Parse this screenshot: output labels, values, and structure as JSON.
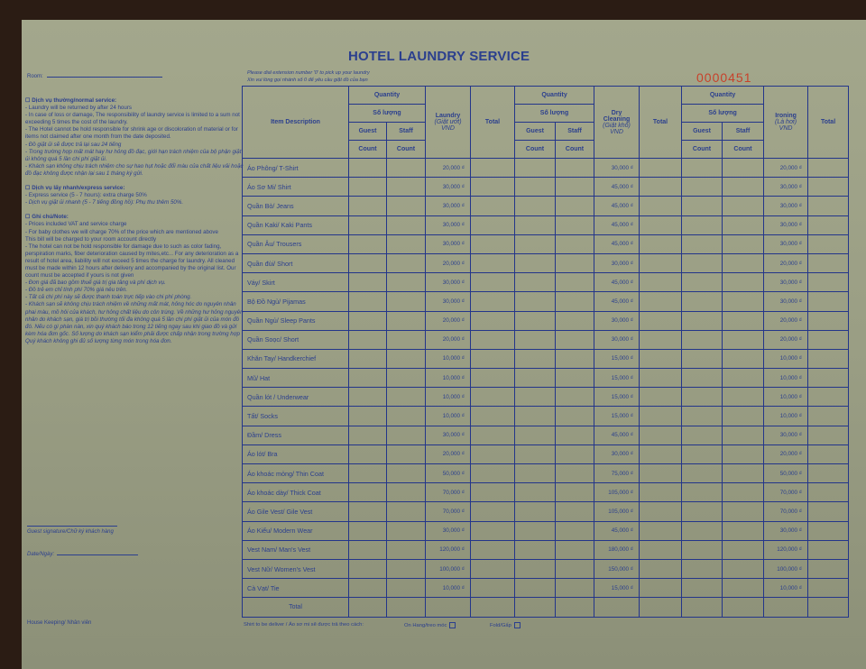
{
  "title": "HOTEL LAUNDRY SERVICE",
  "serial_number": "0000451",
  "extension_note_en": "Please dial extension number '0' to pick up your laundry",
  "extension_note_vi": "Xin vui lòng gọi nhánh số 0 để yêu cầu giặt đồ của bạn",
  "room_label": "Room:",
  "left_panel": {
    "normal_heading": "☐ Dịch vụ thường/normal service:",
    "normal_lines": [
      "- Laundry will be returned by after 24 hours",
      "- In case of loss or damage, The responsibility of laundry service is limited to a sum not exceeding 5 times the cost of the laundry.",
      "- The Hotel cannot be hold responsible for shrink age or discoloration of material or for items not claimed after one month from the date deposited."
    ],
    "normal_lines_vi": [
      "- Đồ giặt ủi sẽ được trả lại sau 24 tiếng",
      "- Trong trường hợp mất mát hay hư hỏng đồ đạc, giới hạn trách nhiệm của bộ phận giặt ủi không quá 5 lần chi phí giặt ủi.",
      "- Khách sạn không chịu trách nhiệm cho sự hao hụt hoặc đổi màu của chất liệu vải hoặc đồ đạc không được nhận lại sau 1 tháng ký gửi."
    ],
    "express_heading": "☐ Dịch vụ lấy nhanh/express service:",
    "express_lines": [
      "- Express service (5 - 7 hours): extra charge 50%"
    ],
    "express_lines_vi": [
      "- Dịch vụ giặt ủi nhanh (5 - 7 tiếng đồng hồ): Phụ thu thêm 50%."
    ],
    "note_heading": "☐ Ghi chú/Note:",
    "note_lines": [
      "- Prices included VAT and service charge",
      "- For baby clothes we will charge 70% of the price which are mentioned above",
      "This bill will be charged to your room account directly",
      "- The hotel can not be hold responsible for damage due to such as color fading, perspiration marks, fiber deterioration caused by mites,etc... For any deterioration as a result of hotel area, liability will not exceed 5 times the charge for laundry. All cleaned must be made within 12 hours after delivery and accompanied by the original list. Our count must be accepted if yours is not given"
    ],
    "note_lines_vi": [
      "- Đơn giá đã bao gồm thuế giá trị gia tăng và phí dịch vụ.",
      "- Đồ trẻ em chỉ tính phí 70% giá nêu trên.",
      "- Tất cả chi phí này sẽ được thanh toán trực tiếp vào chi phí phòng.",
      "- Khách sạn sẽ không chịu trách nhiệm về những mất mát, hỏng hóc do nguyên nhân phai màu, mồ hôi của khách, hư hỏng chất liệu do côn trùng. Về những hư hỏng nguyên nhân do khách sạn, giá trị bồi thường tối đa không quá 5 lần chi phí giặt ủi của món đồ đó. Nếu có gì phàn nàn, xin quý khách báo trong 12 tiếng ngay sau khi giao đồ và gửi kèm hóa đơn gốc. Số lượng do khách sạn kiểm phải được chấp nhận trong trường hợp Quý khách không ghi đủ số lượng từng món trong hóa đơn."
    ],
    "guest_signature": "Guest signature/Chữ ký khách hàng",
    "date_label": "Date/Ngày:",
    "housekeeping": "House Keeping/ Nhân viên"
  },
  "table": {
    "header": {
      "item_description": "Item Description",
      "quantity": "Quantity",
      "so_luong": "Số lượng",
      "guest": "Guest",
      "staff": "Staff",
      "count": "Count",
      "laundry": [
        "Laundry",
        "(Giặt ướt)",
        "VND"
      ],
      "dry_cleaning": [
        "Dry",
        "Cleaning",
        "(Giặt khô)",
        "VND"
      ],
      "ironing": [
        "Ironing",
        "(Là hơi)",
        "VND"
      ],
      "total": "Total"
    },
    "rows": [
      {
        "item": "Áo Phông/ T-Shirt",
        "laundry": "20,000 ₫",
        "dry": "30,000 ₫",
        "ironing": "20,000 ₫"
      },
      {
        "item": "Áo Sơ Mi/ Shirt",
        "laundry": "30,000 ₫",
        "dry": "45,000 ₫",
        "ironing": "30,000 ₫"
      },
      {
        "item": "Quần Bò/ Jeans",
        "laundry": "30,000 ₫",
        "dry": "45,000 ₫",
        "ironing": "30,000 ₫"
      },
      {
        "item": "Quần Kaki/ Kaki Pants",
        "laundry": "30,000 ₫",
        "dry": "45,000 ₫",
        "ironing": "30,000 ₫"
      },
      {
        "item": "Quần Âu/ Trousers",
        "laundry": "30,000 ₫",
        "dry": "45,000 ₫",
        "ironing": "30,000 ₫"
      },
      {
        "item": "Quần đùi/ Short",
        "laundry": "20,000 ₫",
        "dry": "30,000 ₫",
        "ironing": "20,000 ₫"
      },
      {
        "item": "Váy/ Skirt",
        "laundry": "30,000 ₫",
        "dry": "45,000 ₫",
        "ironing": "30,000 ₫"
      },
      {
        "item": "Bộ Đồ Ngủ/ Pijamas",
        "laundry": "30,000 ₫",
        "dry": "45,000 ₫",
        "ironing": "30,000 ₫"
      },
      {
        "item": "Quần Ngủ/ Sleep Pants",
        "laundry": "20,000 ₫",
        "dry": "30,000 ₫",
        "ironing": "20,000 ₫"
      },
      {
        "item": "Quần Soọc/ Short",
        "laundry": "20,000 ₫",
        "dry": "30,000 ₫",
        "ironing": "20,000 ₫"
      },
      {
        "item": "Khăn Tay/ Handkerchief",
        "laundry": "10,000 ₫",
        "dry": "15,000 ₫",
        "ironing": "10,000 ₫"
      },
      {
        "item": "Mũ/ Hat",
        "laundry": "10,000 ₫",
        "dry": "15,000 ₫",
        "ironing": "10,000 ₫"
      },
      {
        "item": "Quần lót / Underwear",
        "laundry": "10,000 ₫",
        "dry": "15,000 ₫",
        "ironing": "10,000 ₫"
      },
      {
        "item": "Tất/ Socks",
        "laundry": "10,000 ₫",
        "dry": "15,000 ₫",
        "ironing": "10,000 ₫"
      },
      {
        "item": "Đầm/ Dress",
        "laundry": "30,000 ₫",
        "dry": "45,000 ₫",
        "ironing": "30,000 ₫"
      },
      {
        "item": "Áo lót/ Bra",
        "laundry": "20,000 ₫",
        "dry": "30,000 ₫",
        "ironing": "20,000 ₫"
      },
      {
        "item": "Áo khoác mỏng/ Thin Coat",
        "laundry": "50,000 ₫",
        "dry": "75,000 ₫",
        "ironing": "50,000 ₫"
      },
      {
        "item": "Áo khoác dày/ Thick Coat",
        "laundry": "70,000 ₫",
        "dry": "105,000 ₫",
        "ironing": "70,000 ₫"
      },
      {
        "item": "Áo Gile Vest/ Gile Vest",
        "laundry": "70,000 ₫",
        "dry": "105,000 ₫",
        "ironing": "70,000 ₫"
      },
      {
        "item": "Áo Kiểu/ Modern Wear",
        "laundry": "30,000 ₫",
        "dry": "45,000 ₫",
        "ironing": "30,000 ₫"
      },
      {
        "item": "Vest Nam/ Man's Vest",
        "laundry": "120,000 ₫",
        "dry": "180,000 ₫",
        "ironing": "120,000 ₫"
      },
      {
        "item": "Vest Nữ/ Women's Vest",
        "laundry": "100,000 ₫",
        "dry": "150,000 ₫",
        "ironing": "100,000 ₫"
      },
      {
        "item": "Cà Vạt/ Tie",
        "laundry": "10,000 ₫",
        "dry": "15,000 ₫",
        "ironing": "10,000 ₫"
      }
    ],
    "total_label": "Total"
  },
  "footer": {
    "delivery_label": "Shirt to be deliver / Áo sơ mi sẽ được trả theo cách:",
    "on_hanger": "On Hang/treo móc",
    "fold": "Fold/Gấp"
  },
  "colors": {
    "ink": "#2b3f8e",
    "serial": "#c8412a",
    "paper": "#a3a78c"
  }
}
